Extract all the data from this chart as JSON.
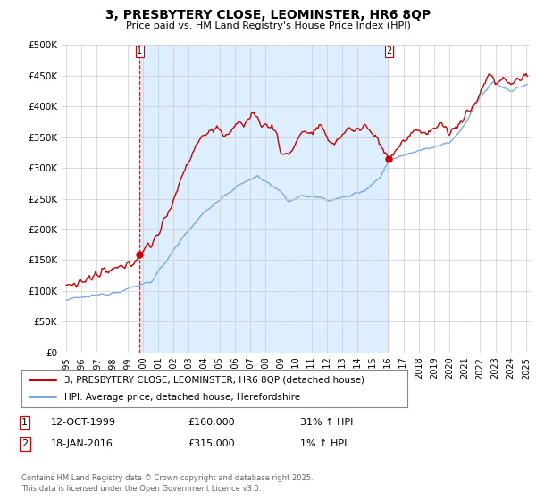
{
  "title": "3, PRESBYTERY CLOSE, LEOMINSTER, HR6 8QP",
  "subtitle": "Price paid vs. HM Land Registry's House Price Index (HPI)",
  "ylabel_ticks": [
    "£0",
    "£50K",
    "£100K",
    "£150K",
    "£200K",
    "£250K",
    "£300K",
    "£350K",
    "£400K",
    "£450K",
    "£500K"
  ],
  "ytick_values": [
    0,
    50000,
    100000,
    150000,
    200000,
    250000,
    300000,
    350000,
    400000,
    450000,
    500000
  ],
  "ylim": [
    0,
    500000
  ],
  "xlim_start": 1994.7,
  "xlim_end": 2025.3,
  "xticks": [
    1995,
    1996,
    1997,
    1998,
    1999,
    2000,
    2001,
    2002,
    2003,
    2004,
    2005,
    2006,
    2007,
    2008,
    2009,
    2010,
    2011,
    2012,
    2013,
    2014,
    2015,
    2016,
    2017,
    2018,
    2019,
    2020,
    2021,
    2022,
    2023,
    2024,
    2025
  ],
  "hpi_color": "#7aaadd",
  "price_color": "#cc0000",
  "fill_color": "#ddeeff",
  "marker1_date": 1999.79,
  "marker1_value": 160000,
  "marker2_date": 2016.05,
  "marker2_value": 315000,
  "legend_line1": "3, PRESBYTERY CLOSE, LEOMINSTER, HR6 8QP (detached house)",
  "legend_line2": "HPI: Average price, detached house, Herefordshire",
  "footer": "Contains HM Land Registry data © Crown copyright and database right 2025.\nThis data is licensed under the Open Government Licence v3.0.",
  "background_color": "#ffffff",
  "grid_color": "#cccccc"
}
